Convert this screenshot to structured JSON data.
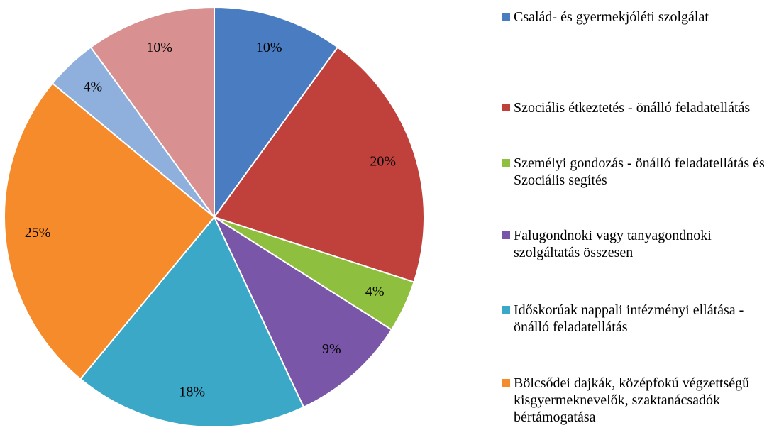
{
  "chart_data": {
    "type": "pie",
    "categories": [
      "Család- és gyermekjóléti szolgálat",
      "Szociális étkeztetés - önálló feladatellátás",
      "Személyi gondozás - önálló feladatellátás és Szociális segítés",
      "Falugondnoki vagy tanyagondnoki szolgáltatás összesen",
      "Időskorúak nappali intézményi ellátása - önálló feladatellátás",
      "Bölcsődei dajkák, középfokú végzettségű kisgyermeknevelők, szaktanácsadók bértámogatása",
      null,
      null
    ],
    "values": [
      10,
      20,
      4,
      9,
      18,
      25,
      4,
      10
    ],
    "value_labels": [
      "10%",
      "20%",
      "4%",
      "9%",
      "18%",
      "25%",
      "4%",
      "10%"
    ],
    "colors": [
      "#4a7cc2",
      "#c0403c",
      "#8fbf3f",
      "#7a56a8",
      "#3ba8c8",
      "#f58b2a",
      "#8fb0dc",
      "#d99090"
    ]
  }
}
